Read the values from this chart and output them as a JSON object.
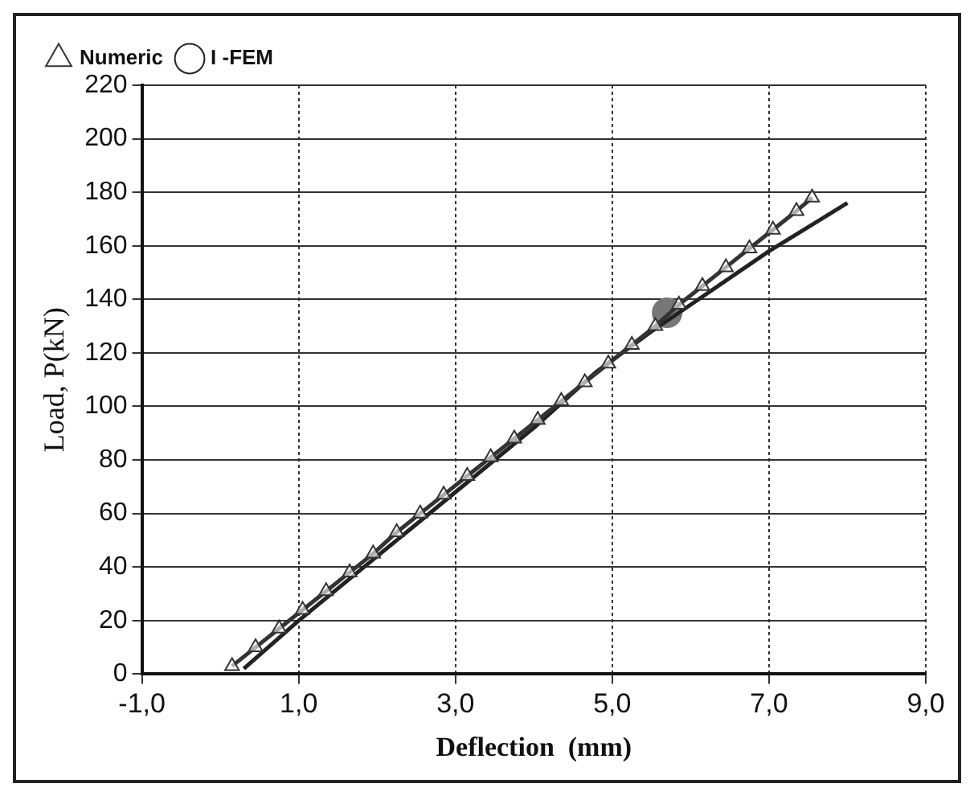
{
  "chart_data": {
    "type": "line",
    "xlabel": "Deflection  (mm)",
    "ylabel": "Load, P(kN)",
    "xlim": [
      -1,
      9
    ],
    "xticks": [
      {
        "value": -1,
        "label": "-1,0"
      },
      {
        "value": 1,
        "label": "1,0"
      },
      {
        "value": 3,
        "label": "3,0"
      },
      {
        "value": 5,
        "label": "5,0"
      },
      {
        "value": 7,
        "label": "7,0"
      },
      {
        "value": 9,
        "label": "9,0"
      }
    ],
    "ylim": [
      0,
      220
    ],
    "yticks": [
      0,
      20,
      40,
      60,
      80,
      100,
      120,
      140,
      160,
      180,
      200,
      220
    ],
    "grid": true,
    "legend": "top left",
    "series": [
      {
        "name": "Numeric",
        "color": "#333333",
        "marker": "triangle",
        "x": [
          0.15,
          0.45,
          0.75,
          1.05,
          1.35,
          1.65,
          1.95,
          2.25,
          2.55,
          2.85,
          3.15,
          3.45,
          3.75,
          4.05,
          4.35,
          4.65,
          4.95,
          5.25,
          5.55,
          5.85,
          6.15,
          6.45,
          6.75,
          7.05,
          7.35,
          7.55
        ],
        "values": [
          3,
          10,
          17,
          24,
          31,
          38,
          45,
          53,
          60,
          67,
          74,
          81,
          88,
          95,
          102,
          109,
          116,
          123,
          130,
          138,
          145,
          152,
          159,
          166,
          173,
          178
        ]
      },
      {
        "name": "I -FEM",
        "color": "#222222",
        "marker": "none",
        "x": [
          0.3,
          1,
          2,
          3,
          4,
          4.8,
          5.5,
          6,
          7,
          8
        ],
        "values": [
          2,
          20,
          44,
          68,
          92,
          113,
          128,
          138,
          158,
          176
        ]
      },
      {
        "type": "scatter",
        "color": "#777777",
        "marker": "circle",
        "x": [
          5.7
        ],
        "values": [
          135
        ]
      }
    ]
  }
}
